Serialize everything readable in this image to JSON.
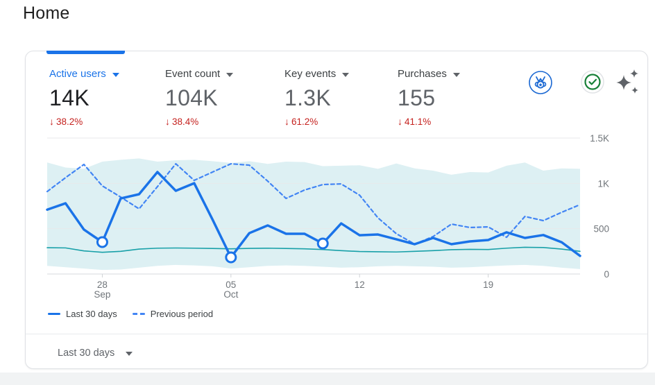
{
  "page": {
    "title": "Home"
  },
  "card": {
    "metrics": [
      {
        "label": "Active users",
        "value": "14K",
        "trend_arrow": "↓",
        "delta": "38.2%",
        "active": true
      },
      {
        "label": "Event count",
        "value": "104K",
        "trend_arrow": "↓",
        "delta": "38.4%",
        "active": false
      },
      {
        "label": "Key events",
        "value": "1.3K",
        "trend_arrow": "↓",
        "delta": "61.2%",
        "active": false
      },
      {
        "label": "Purchases",
        "value": "155",
        "trend_arrow": "↓",
        "delta": "41.1%",
        "active": false
      }
    ],
    "icons": [
      "medal-badge",
      "check-circle",
      "sparkles"
    ],
    "legend": [
      {
        "label": "Last 30 days",
        "style": "solid"
      },
      {
        "label": "Previous period",
        "style": "dashed"
      }
    ],
    "range_selector": {
      "label": "Last 30 days"
    }
  },
  "chart_data": {
    "type": "line",
    "metric_shown": "Active users",
    "ylim": [
      0,
      1500
    ],
    "grid": true,
    "legend_position": "bottom-left",
    "x_ticks": [
      {
        "index": 3,
        "label": "28",
        "sublabel": "Sep"
      },
      {
        "index": 10,
        "label": "05",
        "sublabel": "Oct"
      },
      {
        "index": 17,
        "label": "12",
        "sublabel": ""
      },
      {
        "index": 24,
        "label": "19",
        "sublabel": ""
      }
    ],
    "y_ticks": [
      {
        "value": 0,
        "label": "0"
      },
      {
        "value": 500,
        "label": "500"
      },
      {
        "value": 1000,
        "label": "1K"
      },
      {
        "value": 1500,
        "label": "1.5K"
      }
    ],
    "series": [
      {
        "name": "Last 30 days",
        "style": "solid",
        "color": "#1a73e8",
        "width": 3.5,
        "values": [
          710,
          780,
          490,
          352,
          834,
          880,
          1125,
          918,
          1002,
          600,
          184,
          451,
          536,
          444,
          444,
          337,
          558,
          428,
          436,
          383,
          329,
          398,
          329,
          360,
          375,
          460,
          398,
          430,
          350,
          200
        ]
      },
      {
        "name": "Previous period",
        "style": "dashed",
        "color": "#4285f4",
        "width": 2.2,
        "values": [
          910,
          1063,
          1209,
          972,
          849,
          719,
          964,
          1216,
          1033,
          1125,
          1216,
          1201,
          1025,
          834,
          926,
          987,
          994,
          870,
          620,
          445,
          330,
          413,
          551,
          513,
          520,
          405,
          635,
          589,
          681,
          765
        ]
      },
      {
        "name": "baseline",
        "style": "solid",
        "color": "#18a0a8",
        "width": 1.6,
        "values": [
          290,
          288,
          255,
          240,
          250,
          275,
          285,
          287,
          285,
          282,
          278,
          283,
          285,
          282,
          278,
          270,
          258,
          248,
          245,
          243,
          250,
          258,
          268,
          272,
          270,
          285,
          295,
          292,
          275,
          250
        ]
      }
    ],
    "band": {
      "color": "#ddf0f3",
      "top": [
        1230,
        1175,
        1160,
        1240,
        1260,
        1275,
        1240,
        1255,
        1260,
        1245,
        1225,
        1245,
        1215,
        1240,
        1235,
        1190,
        1195,
        1200,
        1160,
        1220,
        1165,
        1140,
        1095,
        1125,
        1120,
        1195,
        1230,
        1140,
        1165,
        1160
      ],
      "bottom": [
        90,
        75,
        60,
        45,
        50,
        70,
        90,
        100,
        95,
        85,
        60,
        75,
        90,
        95,
        90,
        80,
        70,
        75,
        85,
        90,
        85,
        80,
        70,
        75,
        85,
        95,
        100,
        90,
        70,
        55
      ]
    },
    "markers": [
      3,
      10,
      15
    ]
  },
  "colors": {
    "accent": "#1a73e8",
    "delta_negative": "#c5221f",
    "check_green": "#188038",
    "medal_blue": "#1967d2",
    "sparkle_gray": "#5f6368",
    "band_fill": "#ddf0f3",
    "baseline_teal": "#18a0a8"
  }
}
